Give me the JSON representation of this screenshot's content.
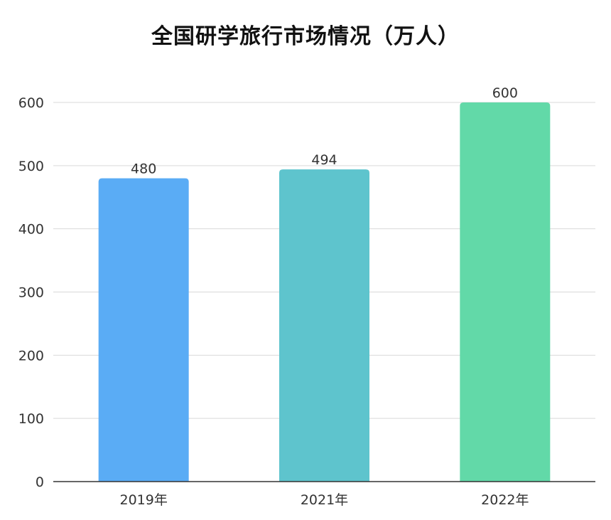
{
  "chart_data": {
    "type": "bar",
    "title": "全国研学旅行市场情况（万人）",
    "categories": [
      "2019年",
      "2021年",
      "2022年"
    ],
    "values": [
      480,
      494,
      600
    ],
    "colors": [
      "#5aacf5",
      "#5ec4cd",
      "#62d9a8"
    ],
    "ylim": [
      0,
      600
    ],
    "yticks": [
      0,
      100,
      200,
      300,
      400,
      500,
      600
    ],
    "grid": true,
    "gridColor": "#d9d9d9",
    "axisColor": "#333333",
    "show_value_labels": true,
    "xlabel": "",
    "ylabel": ""
  }
}
